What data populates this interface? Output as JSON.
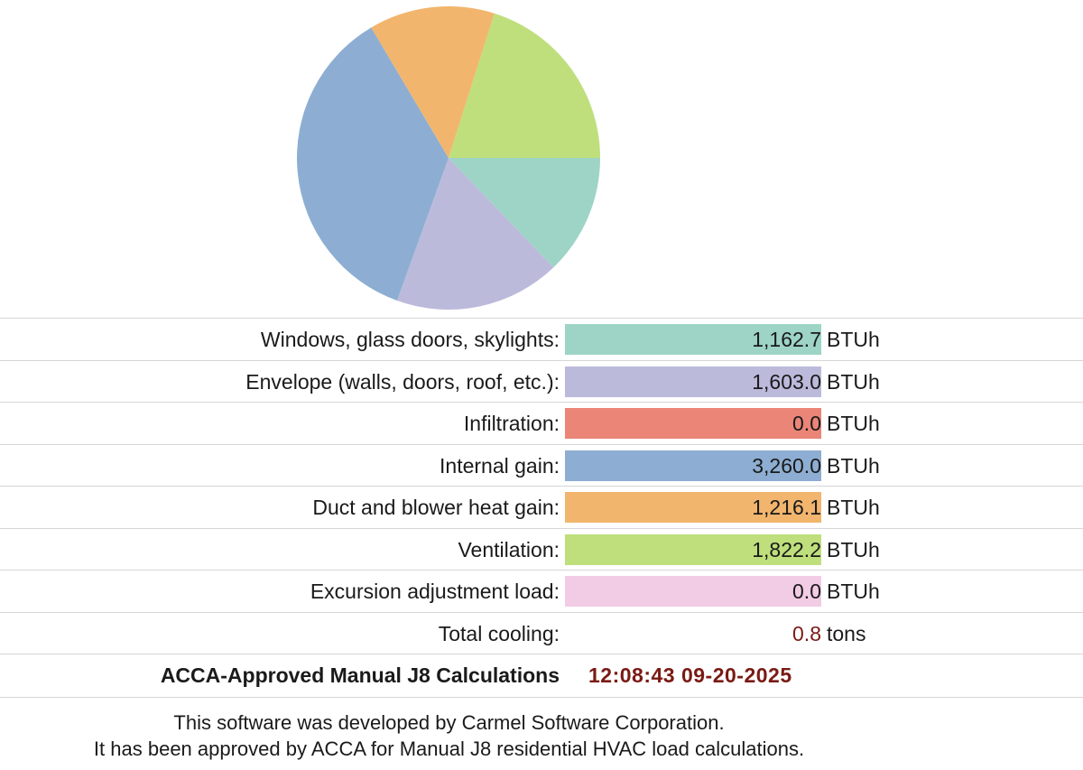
{
  "chart_data": {
    "type": "pie",
    "title": "",
    "slices": [
      {
        "label": "Windows, glass doors, skylights",
        "value": 1162.7,
        "color": "#9dd4c6"
      },
      {
        "label": "Envelope (walls, doors, roof, etc.)",
        "value": 1603.0,
        "color": "#bcbadb"
      },
      {
        "label": "Infiltration",
        "value": 0.0,
        "color": "#ea8578"
      },
      {
        "label": "Internal gain",
        "value": 3260.0,
        "color": "#8daed2"
      },
      {
        "label": "Duct and blower heat gain",
        "value": 1216.1,
        "color": "#f2b56e"
      },
      {
        "label": "Ventilation",
        "value": 1822.2,
        "color": "#bedf7c"
      },
      {
        "label": "Excursion adjustment load",
        "value": 0.0,
        "color": "#f2cbe4"
      }
    ],
    "start": "3 o'clock",
    "direction": "clockwise"
  },
  "loads": [
    {
      "label": "Windows, glass doors, skylights:",
      "value": "1,162.7",
      "unit": "BTUh",
      "color": "#9dd4c6"
    },
    {
      "label": "Envelope (walls, doors, roof, etc.):",
      "value": "1,603.0",
      "unit": "BTUh",
      "color": "#bcbadb"
    },
    {
      "label": "Infiltration:",
      "value": "0.0",
      "unit": "BTUh",
      "color": "#ea8578"
    },
    {
      "label": "Internal gain:",
      "value": "3,260.0",
      "unit": "BTUh",
      "color": "#8daed2"
    },
    {
      "label": "Duct and blower heat gain:",
      "value": "1,216.1",
      "unit": "BTUh",
      "color": "#f2b56e"
    },
    {
      "label": "Ventilation:",
      "value": "1,822.2",
      "unit": "BTUh",
      "color": "#bedf7c"
    },
    {
      "label": "Excursion adjustment load:",
      "value": "0.0",
      "unit": "BTUh",
      "color": "#f2cbe4"
    }
  ],
  "total": {
    "label": "Total cooling:",
    "value": "0.8",
    "unit": "tons"
  },
  "approval": {
    "label": "ACCA-Approved Manual J8 Calculations",
    "timestamp": "12:08:43 09-20-2025"
  },
  "footer": {
    "line1": "This software was developed by Carmel Software Corporation.",
    "line2": "It has been approved by ACCA for Manual J8 residential HVAC load calculations."
  }
}
